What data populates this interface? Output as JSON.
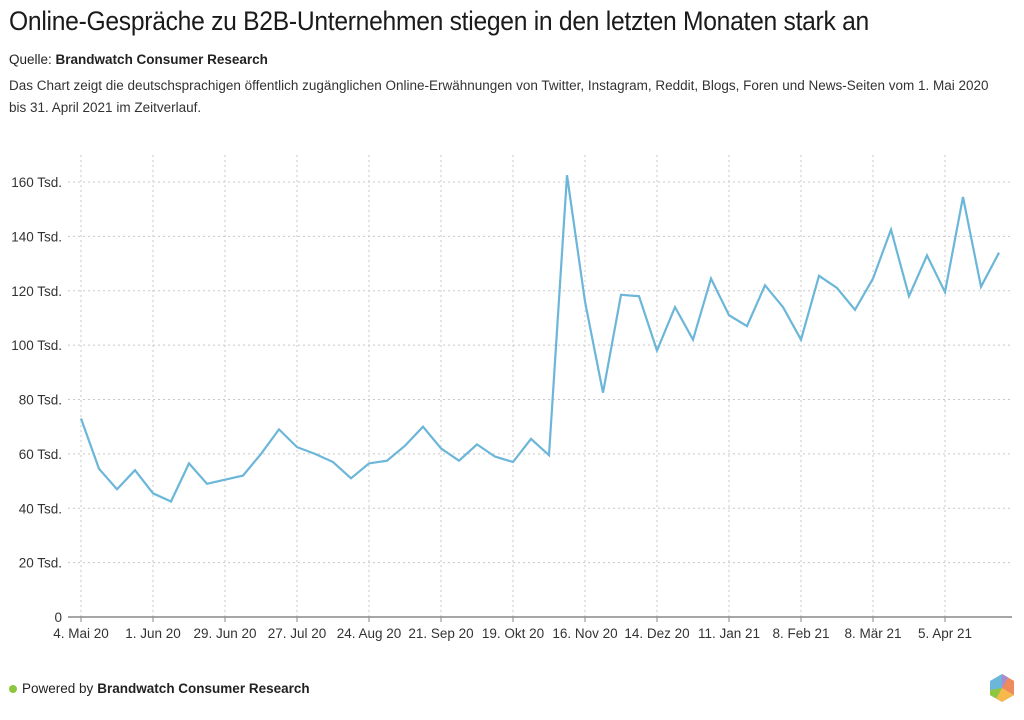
{
  "header": {
    "title": "Online-Gespräche zu B2B-Unternehmen stiegen in den letzten Monaten stark an",
    "source_label": "Quelle:",
    "source_name": "Brandwatch Consumer Research",
    "description": "Das Chart zeigt die deutschsprachigen öffentlich zugänglichen Online-Erwähnungen von Twitter, Instagram, Reddit, Blogs, Foren und News-Seiten vom 1. Mai 2020 bis 31. April 2021 im Zeitverlauf."
  },
  "footer": {
    "powered_label": "Powered by",
    "powered_name": "Brandwatch Consumer Research",
    "status_dot_color": "#8dc63f",
    "logo_icon": "brandwatch-hexagon-logo"
  },
  "colors": {
    "line": "#6bb6d9",
    "grid": "#c8c8c8",
    "axis": "#888888",
    "text": "#333333"
  },
  "chart_data": {
    "type": "line",
    "title": "Online-Gespräche zu B2B-Unternehmen stiegen in den letzten Monaten stark an",
    "xlabel": "",
    "ylabel": "",
    "ylim": [
      0,
      170
    ],
    "yticks": [
      0,
      20,
      40,
      60,
      80,
      100,
      120,
      140,
      160
    ],
    "ytick_labels": [
      "0",
      "20 Tsd.",
      "40 Tsd.",
      "60 Tsd.",
      "80 Tsd.",
      "100 Tsd.",
      "120 Tsd.",
      "140 Tsd.",
      "160 Tsd."
    ],
    "unit": "Tsd.",
    "interval": "weekly",
    "xtick_every": 4,
    "xtick_labels": [
      "4. Mai 20",
      "1. Jun 20",
      "29. Jun 20",
      "27. Jul 20",
      "24. Aug 20",
      "21. Sep 20",
      "19. Okt 20",
      "16. Nov 20",
      "14. Dez 20",
      "11. Jan 21",
      "8. Feb 21",
      "8. Mär 21",
      "5. Apr 21"
    ],
    "grid": true,
    "legend": "none",
    "series": [
      {
        "name": "Online-Erwähnungen",
        "values": [
          73,
          54.5,
          47,
          54,
          45.5,
          42.5,
          56.5,
          49,
          50.5,
          52,
          60,
          69,
          62.5,
          60,
          57,
          51,
          56.5,
          57.5,
          63,
          70,
          62,
          57.5,
          63.5,
          59,
          57,
          65.5,
          59.5,
          162.5,
          116,
          82.5,
          118.5,
          118,
          98,
          114,
          102,
          124.5,
          111,
          107,
          122,
          114,
          102,
          125.5,
          121,
          113,
          124.5,
          142.5,
          118,
          133,
          119.5,
          154.5,
          121.5,
          134
        ]
      }
    ]
  }
}
